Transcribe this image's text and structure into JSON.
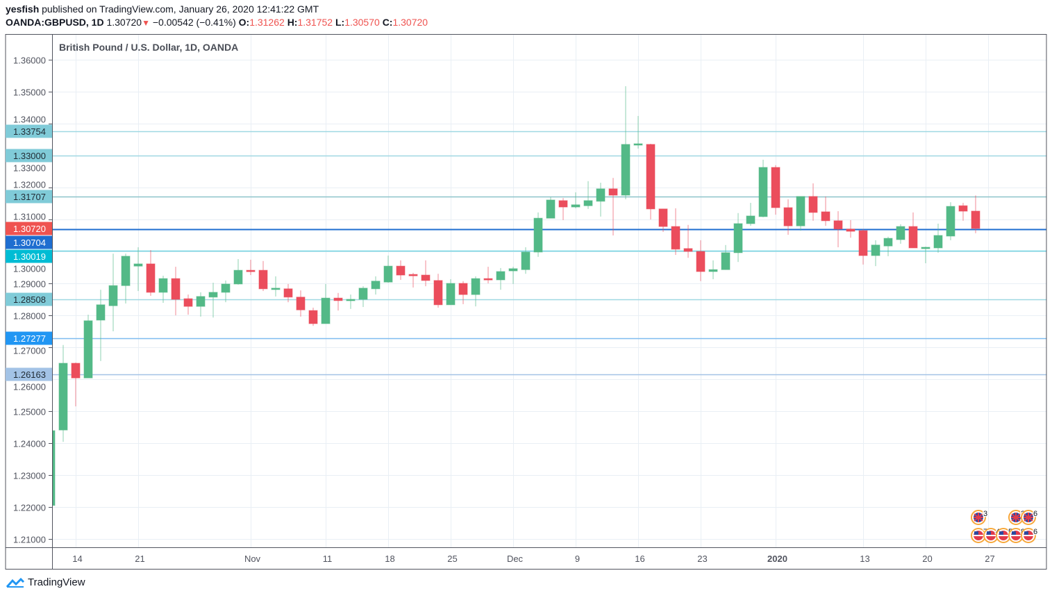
{
  "header": {
    "author": "yesfish",
    "published": "published on TradingView.com, January 26, 2020 12:41:22 GMT",
    "symbol": "OANDA:GBPUSD, 1D",
    "last": "1.30720",
    "change": "−0.00542 (−0.41%)",
    "o_label": "O:",
    "o": "1.31262",
    "h_label": "H:",
    "h": "1.31752",
    "l_label": "L:",
    "l": "1.30570",
    "c_label": "C:",
    "c": "1.30720"
  },
  "footer": {
    "brand": "TradingView"
  },
  "colors": {
    "up": "#53b987",
    "down": "#eb4d5c",
    "grid": "#e9eff5"
  },
  "chart_data": {
    "type": "candlestick",
    "title": "British Pound / U.S. Dollar, 1D, OANDA",
    "ylim": [
      1.205,
      1.365
    ],
    "yticks": [
      "1.36000",
      "1.35000",
      "1.34000",
      "1.33000",
      "1.32000",
      "1.31000",
      "1.30000",
      "1.29000",
      "1.28000",
      "1.27000",
      "1.26000",
      "1.25000",
      "1.24000",
      "1.23000",
      "1.22000",
      "1.21000"
    ],
    "xtick_labels": [
      {
        "i": 2,
        "label": "14"
      },
      {
        "i": 7,
        "label": "21"
      },
      {
        "i": 16,
        "label": "Nov"
      },
      {
        "i": 22,
        "label": "11"
      },
      {
        "i": 27,
        "label": "18"
      },
      {
        "i": 32,
        "label": "25"
      },
      {
        "i": 37,
        "label": "Dec"
      },
      {
        "i": 42,
        "label": "9"
      },
      {
        "i": 47,
        "label": "16"
      },
      {
        "i": 52,
        "label": "23"
      },
      {
        "i": 58,
        "label": "2020",
        "bold": true
      },
      {
        "i": 65,
        "label": "13"
      },
      {
        "i": 70,
        "label": "20"
      },
      {
        "i": 75,
        "label": "27"
      }
    ],
    "levels": [
      {
        "label": "1.33754",
        "value": 1.33754,
        "bg": "#80cbd8",
        "fg": "#1f2a33",
        "line": "#9fd8e2"
      },
      {
        "label": "1.33000",
        "value": 1.33,
        "bg": "#80cbd8",
        "fg": "#1f2a33",
        "line": "#9fd8e2"
      },
      {
        "label": "1.31707",
        "value": 1.31707,
        "bg": "#80cbd8",
        "fg": "#1f2a33",
        "line": "#8cc3c9"
      },
      {
        "label": "1.30720",
        "value": 1.3072,
        "bg": "#ef5350",
        "fg": "#ffffff",
        "line": null
      },
      {
        "label": "1.30704",
        "value": 1.30704,
        "bg": "#1e6ed0",
        "fg": "#ffffff",
        "line": "#1e6ed0"
      },
      {
        "label": "1.30019",
        "value": 1.30019,
        "bg": "#00bcd4",
        "fg": "#ffffff",
        "line": "#6fd3e0"
      },
      {
        "label": "1.28508",
        "value": 1.28508,
        "bg": "#80cbd8",
        "fg": "#1f2a33",
        "line": "#9fd8e2"
      },
      {
        "label": "1.27277",
        "value": 1.27277,
        "bg": "#2196f3",
        "fg": "#ffffff",
        "line": "#7fbcf0"
      },
      {
        "label": "1.26163",
        "value": 1.26163,
        "bg": "#a3c3e6",
        "fg": "#1f2a33",
        "line": "#a3c3e6"
      }
    ],
    "candles": [
      {
        "d": "2019-10-10",
        "o": 1.2205,
        "h": 1.2439,
        "l": 1.22,
        "c": 1.2439
      },
      {
        "d": "2019-10-11",
        "o": 1.2441,
        "h": 1.2707,
        "l": 1.2404,
        "c": 1.265
      },
      {
        "d": "2019-10-14",
        "o": 1.265,
        "h": 1.2652,
        "l": 1.2515,
        "c": 1.2604
      },
      {
        "d": "2019-10-15",
        "o": 1.2604,
        "h": 1.2802,
        "l": 1.2604,
        "c": 1.2783
      },
      {
        "d": "2019-10-16",
        "o": 1.2785,
        "h": 1.288,
        "l": 1.2657,
        "c": 1.2833
      },
      {
        "d": "2019-10-17",
        "o": 1.283,
        "h": 1.2993,
        "l": 1.275,
        "c": 1.2893
      },
      {
        "d": "2019-10-18",
        "o": 1.2893,
        "h": 1.2993,
        "l": 1.2837,
        "c": 1.2985
      },
      {
        "d": "2019-10-21",
        "o": 1.2954,
        "h": 1.3013,
        "l": 1.2876,
        "c": 1.2961
      },
      {
        "d": "2019-10-22",
        "o": 1.2961,
        "h": 1.3004,
        "l": 1.2861,
        "c": 1.2872
      },
      {
        "d": "2019-10-23",
        "o": 1.2872,
        "h": 1.2924,
        "l": 1.2839,
        "c": 1.2915
      },
      {
        "d": "2019-10-24",
        "o": 1.2915,
        "h": 1.2952,
        "l": 1.28,
        "c": 1.285
      },
      {
        "d": "2019-10-25",
        "o": 1.2852,
        "h": 1.2865,
        "l": 1.2802,
        "c": 1.2828
      },
      {
        "d": "2019-10-28",
        "o": 1.2828,
        "h": 1.2872,
        "l": 1.2796,
        "c": 1.2859
      },
      {
        "d": "2019-10-29",
        "o": 1.2857,
        "h": 1.2902,
        "l": 1.2793,
        "c": 1.2872
      },
      {
        "d": "2019-10-30",
        "o": 1.2872,
        "h": 1.2909,
        "l": 1.2841,
        "c": 1.2898
      },
      {
        "d": "2019-10-31",
        "o": 1.2898,
        "h": 1.2976,
        "l": 1.2896,
        "c": 1.2941
      },
      {
        "d": "2019-11-01",
        "o": 1.2941,
        "h": 1.2974,
        "l": 1.2926,
        "c": 1.2937
      },
      {
        "d": "2019-11-04",
        "o": 1.2941,
        "h": 1.297,
        "l": 1.2876,
        "c": 1.2883
      },
      {
        "d": "2019-11-05",
        "o": 1.2883,
        "h": 1.2922,
        "l": 1.2859,
        "c": 1.2885
      },
      {
        "d": "2019-11-06",
        "o": 1.2883,
        "h": 1.2898,
        "l": 1.2841,
        "c": 1.2857
      },
      {
        "d": "2019-11-07",
        "o": 1.2857,
        "h": 1.2878,
        "l": 1.2796,
        "c": 1.2817
      },
      {
        "d": "2019-11-08",
        "o": 1.2815,
        "h": 1.2824,
        "l": 1.2767,
        "c": 1.2774
      },
      {
        "d": "2019-11-11",
        "o": 1.2774,
        "h": 1.2898,
        "l": 1.2774,
        "c": 1.2854
      },
      {
        "d": "2019-11-12",
        "o": 1.2854,
        "h": 1.287,
        "l": 1.2815,
        "c": 1.2846
      },
      {
        "d": "2019-11-13",
        "o": 1.2848,
        "h": 1.2865,
        "l": 1.282,
        "c": 1.285
      },
      {
        "d": "2019-11-14",
        "o": 1.285,
        "h": 1.2891,
        "l": 1.2826,
        "c": 1.2885
      },
      {
        "d": "2019-11-15",
        "o": 1.2883,
        "h": 1.2922,
        "l": 1.2865,
        "c": 1.2907
      },
      {
        "d": "2019-11-18",
        "o": 1.2904,
        "h": 1.2987,
        "l": 1.2902,
        "c": 1.2954
      },
      {
        "d": "2019-11-19",
        "o": 1.2954,
        "h": 1.2972,
        "l": 1.2911,
        "c": 1.2926
      },
      {
        "d": "2019-11-20",
        "o": 1.2928,
        "h": 1.2933,
        "l": 1.2887,
        "c": 1.2924
      },
      {
        "d": "2019-11-21",
        "o": 1.2926,
        "h": 1.2972,
        "l": 1.2891,
        "c": 1.2909
      },
      {
        "d": "2019-11-22",
        "o": 1.2909,
        "h": 1.293,
        "l": 1.2824,
        "c": 1.2833
      },
      {
        "d": "2019-11-25",
        "o": 1.2833,
        "h": 1.2913,
        "l": 1.2833,
        "c": 1.29
      },
      {
        "d": "2019-11-26",
        "o": 1.29,
        "h": 1.2907,
        "l": 1.2835,
        "c": 1.2865
      },
      {
        "d": "2019-11-27",
        "o": 1.2865,
        "h": 1.2922,
        "l": 1.2828,
        "c": 1.2915
      },
      {
        "d": "2019-11-28",
        "o": 1.2915,
        "h": 1.2952,
        "l": 1.29,
        "c": 1.2911
      },
      {
        "d": "2019-11-29",
        "o": 1.2911,
        "h": 1.2948,
        "l": 1.288,
        "c": 1.2937
      },
      {
        "d": "2019-12-02",
        "o": 1.2939,
        "h": 1.2952,
        "l": 1.2898,
        "c": 1.2946
      },
      {
        "d": "2019-12-03",
        "o": 1.2943,
        "h": 1.3013,
        "l": 1.293,
        "c": 1.2998
      },
      {
        "d": "2019-12-04",
        "o": 1.2998,
        "h": 1.3122,
        "l": 1.2983,
        "c": 1.3104
      },
      {
        "d": "2019-12-05",
        "o": 1.3104,
        "h": 1.317,
        "l": 1.3104,
        "c": 1.3161
      },
      {
        "d": "2019-12-06",
        "o": 1.3159,
        "h": 1.3167,
        "l": 1.3098,
        "c": 1.3139
      },
      {
        "d": "2019-12-09",
        "o": 1.3139,
        "h": 1.3185,
        "l": 1.3135,
        "c": 1.3146
      },
      {
        "d": "2019-12-10",
        "o": 1.3143,
        "h": 1.322,
        "l": 1.3133,
        "c": 1.3159
      },
      {
        "d": "2019-12-11",
        "o": 1.3157,
        "h": 1.3215,
        "l": 1.3109,
        "c": 1.3196
      },
      {
        "d": "2019-12-12",
        "o": 1.3196,
        "h": 1.323,
        "l": 1.305,
        "c": 1.3176
      },
      {
        "d": "2019-12-13",
        "o": 1.3176,
        "h": 1.3517,
        "l": 1.3163,
        "c": 1.3335
      },
      {
        "d": "2019-12-16",
        "o": 1.3335,
        "h": 1.3424,
        "l": 1.3322,
        "c": 1.3337
      },
      {
        "d": "2019-12-17",
        "o": 1.3335,
        "h": 1.3337,
        "l": 1.31,
        "c": 1.3133
      },
      {
        "d": "2019-12-18",
        "o": 1.3133,
        "h": 1.3133,
        "l": 1.3061,
        "c": 1.3078
      },
      {
        "d": "2019-12-19",
        "o": 1.3078,
        "h": 1.3135,
        "l": 1.2989,
        "c": 1.3007
      },
      {
        "d": "2019-12-20",
        "o": 1.3009,
        "h": 1.3083,
        "l": 1.298,
        "c": 1.3
      },
      {
        "d": "2019-12-23",
        "o": 1.3,
        "h": 1.3035,
        "l": 1.2907,
        "c": 1.2937
      },
      {
        "d": "2019-12-24",
        "o": 1.2937,
        "h": 1.2972,
        "l": 1.2913,
        "c": 1.2943
      },
      {
        "d": "2019-12-26",
        "o": 1.2943,
        "h": 1.302,
        "l": 1.2943,
        "c": 1.2996
      },
      {
        "d": "2019-12-27",
        "o": 1.2996,
        "h": 1.312,
        "l": 1.2967,
        "c": 1.3087
      },
      {
        "d": "2019-12-30",
        "o": 1.3087,
        "h": 1.3152,
        "l": 1.308,
        "c": 1.3111
      },
      {
        "d": "2019-12-31",
        "o": 1.3109,
        "h": 1.3287,
        "l": 1.3107,
        "c": 1.3263
      },
      {
        "d": "2020-01-02",
        "o": 1.3263,
        "h": 1.327,
        "l": 1.3115,
        "c": 1.3137
      },
      {
        "d": "2020-01-03",
        "o": 1.3137,
        "h": 1.3163,
        "l": 1.3052,
        "c": 1.308
      },
      {
        "d": "2020-01-06",
        "o": 1.308,
        "h": 1.3172,
        "l": 1.3065,
        "c": 1.3172
      },
      {
        "d": "2020-01-07",
        "o": 1.3172,
        "h": 1.3213,
        "l": 1.3096,
        "c": 1.3122
      },
      {
        "d": "2020-01-08",
        "o": 1.3124,
        "h": 1.3172,
        "l": 1.308,
        "c": 1.3096
      },
      {
        "d": "2020-01-09",
        "o": 1.3096,
        "h": 1.3126,
        "l": 1.3013,
        "c": 1.307
      },
      {
        "d": "2020-01-10",
        "o": 1.307,
        "h": 1.3098,
        "l": 1.3043,
        "c": 1.3063
      },
      {
        "d": "2020-01-13",
        "o": 1.3065,
        "h": 1.307,
        "l": 1.2959,
        "c": 1.2987
      },
      {
        "d": "2020-01-14",
        "o": 1.2987,
        "h": 1.3035,
        "l": 1.2954,
        "c": 1.302
      },
      {
        "d": "2020-01-15",
        "o": 1.3017,
        "h": 1.3046,
        "l": 1.2985,
        "c": 1.3041
      },
      {
        "d": "2020-01-16",
        "o": 1.3037,
        "h": 1.3085,
        "l": 1.3024,
        "c": 1.3078
      },
      {
        "d": "2020-01-17",
        "o": 1.3078,
        "h": 1.3122,
        "l": 1.3011,
        "c": 1.3011
      },
      {
        "d": "2020-01-20",
        "o": 1.3011,
        "h": 1.3015,
        "l": 1.2963,
        "c": 1.3013
      },
      {
        "d": "2020-01-21",
        "o": 1.3011,
        "h": 1.3087,
        "l": 1.2996,
        "c": 1.305
      },
      {
        "d": "2020-01-22",
        "o": 1.3048,
        "h": 1.3154,
        "l": 1.3035,
        "c": 1.3141
      },
      {
        "d": "2020-01-23",
        "o": 1.3143,
        "h": 1.3152,
        "l": 1.3096,
        "c": 1.3126
      },
      {
        "d": "2020-01-24",
        "o": 1.31262,
        "h": 1.31752,
        "l": 1.3057,
        "c": 1.3072
      }
    ],
    "events": {
      "uk": [
        {
          "i": 74,
          "count": "3"
        },
        {
          "i": 77,
          "count": "2"
        },
        {
          "i": 78,
          "count": "6"
        }
      ],
      "us": [
        {
          "i": 74,
          "count": "7"
        },
        {
          "i": 75,
          "count": "4"
        },
        {
          "i": 76,
          "count": "5"
        },
        {
          "i": 77,
          "count": "8"
        },
        {
          "i": 78,
          "count": "6"
        }
      ]
    }
  }
}
